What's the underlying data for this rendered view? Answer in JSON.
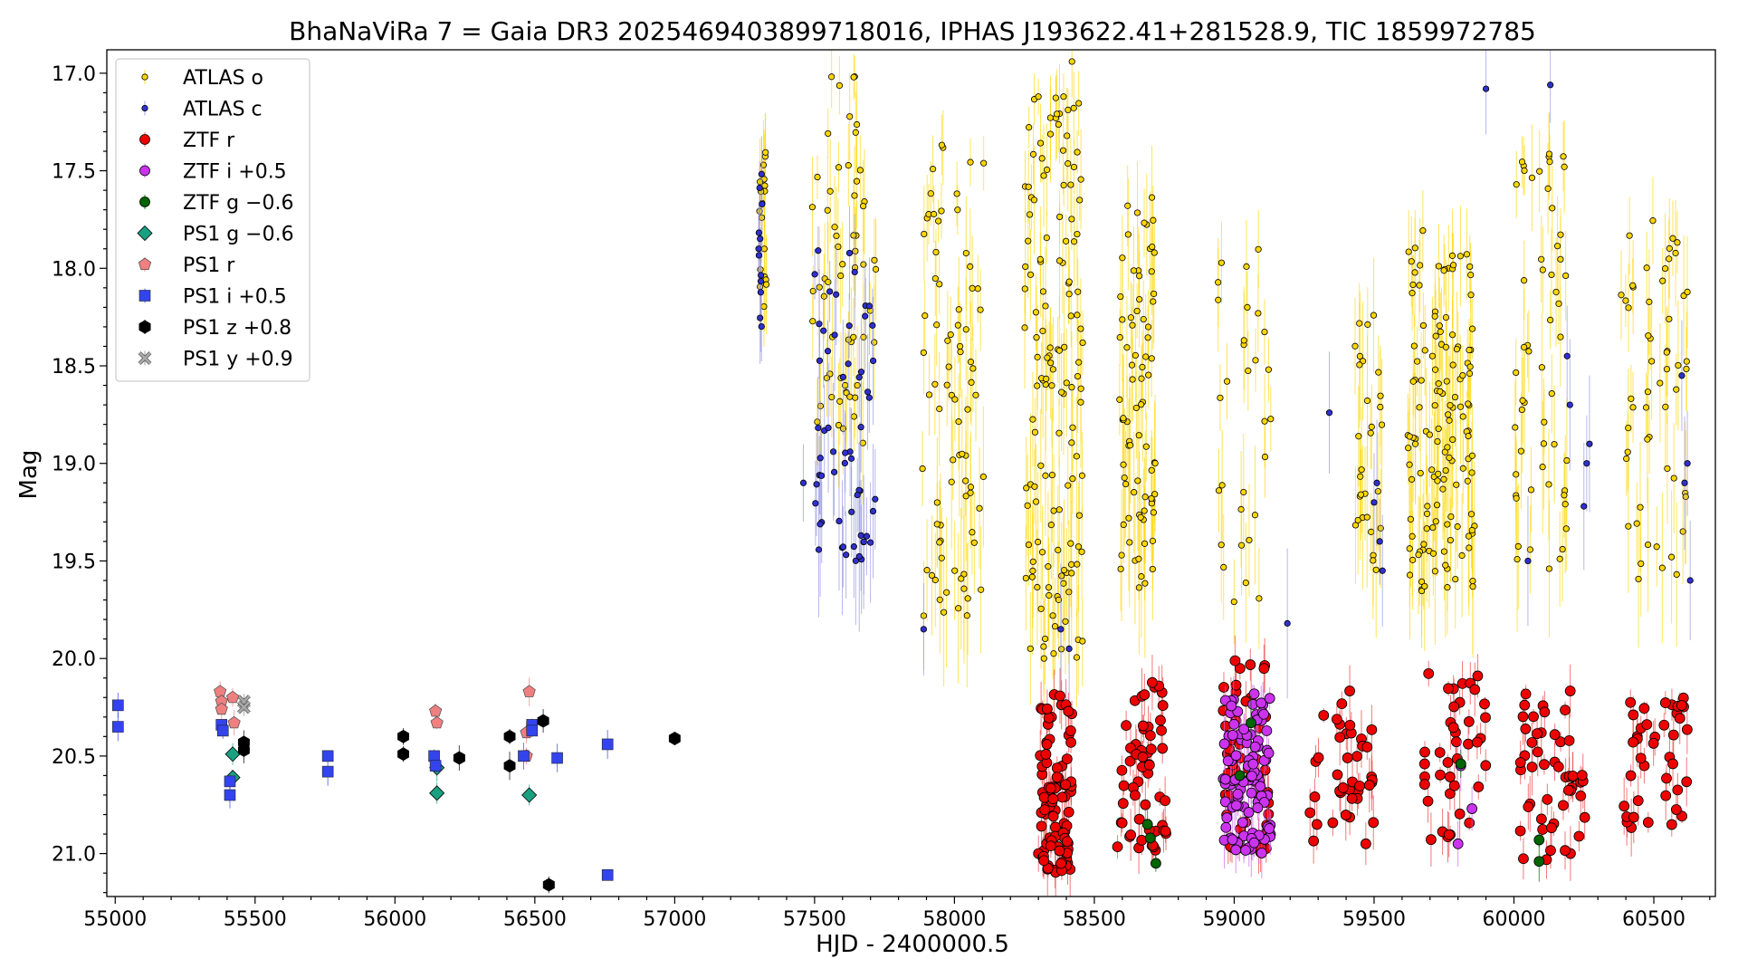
{
  "chart_data": {
    "type": "scatter",
    "title": "BhaNaViRa 7 = Gaia DR3 2025469403899718016, IPHAS J193622.41+281528.9, TIC 1859972785",
    "xlabel": "HJD - 2400000.5",
    "ylabel": "Mag",
    "xlim": [
      54970,
      60720
    ],
    "ylim": [
      21.22,
      16.88
    ],
    "y_inverted": true,
    "x_ticks": [
      55000,
      55500,
      56000,
      56500,
      57000,
      57500,
      58000,
      58500,
      59000,
      59500,
      60000,
      60500
    ],
    "y_ticks": [
      17.0,
      17.5,
      18.0,
      18.5,
      19.0,
      19.5,
      20.0,
      20.5,
      21.0
    ],
    "grid": false,
    "legend_position": "upper-left",
    "series": [
      {
        "name": "ATLAS o",
        "marker": "circle-small",
        "color": "#ffd700",
        "err_color": "#ffd700",
        "seasons": [
          {
            "x0": 57300,
            "x1": 57330,
            "ymin": 17.2,
            "ymax": 18.2,
            "n": 18
          },
          {
            "x0": 57490,
            "x1": 57720,
            "ymin": 17.0,
            "ymax": 18.9,
            "n": 60
          },
          {
            "x0": 57880,
            "x1": 58110,
            "ymin": 17.35,
            "ymax": 19.8,
            "n": 80
          },
          {
            "x0": 58250,
            "x1": 58460,
            "ymin": 17.1,
            "ymax": 20.0,
            "n": 140
          },
          {
            "x0": 58590,
            "x1": 58720,
            "ymin": 17.6,
            "ymax": 19.7,
            "n": 80
          },
          {
            "x0": 58940,
            "x1": 59140,
            "ymin": 17.9,
            "ymax": 19.9,
            "n": 30
          },
          {
            "x0": 59430,
            "x1": 59530,
            "ymin": 18.2,
            "ymax": 19.6,
            "n": 30
          },
          {
            "x0": 59620,
            "x1": 59860,
            "ymin": 17.8,
            "ymax": 19.7,
            "n": 140
          },
          {
            "x0": 60000,
            "x1": 60200,
            "ymin": 17.4,
            "ymax": 19.6,
            "n": 55
          },
          {
            "x0": 60380,
            "x1": 60620,
            "ymin": 17.75,
            "ymax": 19.6,
            "n": 55
          }
        ],
        "points": [
          {
            "x": 57640,
            "y": 17.02
          },
          {
            "x": 58390,
            "y": 17.12
          },
          {
            "x": 58300,
            "y": 17.12
          },
          {
            "x": 58420,
            "y": 16.94
          },
          {
            "x": 58320,
            "y": 20.0
          },
          {
            "x": 60180,
            "y": 17.48
          }
        ]
      },
      {
        "name": "ATLAS c",
        "marker": "circle-small",
        "color": "#3030d0",
        "err_color": "#9090e0",
        "seasons": [
          {
            "x0": 57300,
            "x1": 57320,
            "ymin": 17.5,
            "ymax": 18.3,
            "n": 12
          },
          {
            "x0": 57500,
            "x1": 57720,
            "ymin": 17.9,
            "ymax": 19.5,
            "n": 60
          }
        ],
        "points": [
          {
            "x": 57460,
            "y": 19.1
          },
          {
            "x": 57890,
            "y": 19.85
          },
          {
            "x": 58380,
            "y": 19.85
          },
          {
            "x": 58410,
            "y": 19.95
          },
          {
            "x": 59190,
            "y": 19.82
          },
          {
            "x": 59340,
            "y": 18.74
          },
          {
            "x": 59510,
            "y": 19.1
          },
          {
            "x": 59520,
            "y": 19.4
          },
          {
            "x": 59530,
            "y": 19.55
          },
          {
            "x": 59500,
            "y": 19.2
          },
          {
            "x": 59900,
            "y": 17.08
          },
          {
            "x": 60050,
            "y": 19.5
          },
          {
            "x": 60130,
            "y": 17.06
          },
          {
            "x": 60190,
            "y": 18.45
          },
          {
            "x": 60200,
            "y": 18.7
          },
          {
            "x": 60250,
            "y": 19.22
          },
          {
            "x": 60260,
            "y": 19.0
          },
          {
            "x": 60270,
            "y": 18.9
          },
          {
            "x": 60600,
            "y": 18.55
          },
          {
            "x": 60610,
            "y": 19.1
          },
          {
            "x": 60630,
            "y": 19.6
          },
          {
            "x": 60620,
            "y": 19.0
          }
        ]
      },
      {
        "name": "ZTF r",
        "marker": "circle",
        "color": "#ee0000",
        "err_color": "#ee4040",
        "seasons": [
          {
            "x0": 58300,
            "x1": 58420,
            "ymin": 20.15,
            "ymax": 21.1,
            "n": 90
          },
          {
            "x0": 58580,
            "x1": 58760,
            "ymin": 20.1,
            "ymax": 21.0,
            "n": 55
          },
          {
            "x0": 58960,
            "x1": 59130,
            "ymin": 20.0,
            "ymax": 21.0,
            "n": 55
          },
          {
            "x0": 59260,
            "x1": 59500,
            "ymin": 20.15,
            "ymax": 20.95,
            "n": 40
          },
          {
            "x0": 59680,
            "x1": 59900,
            "ymin": 20.05,
            "ymax": 20.95,
            "n": 40
          },
          {
            "x0": 60020,
            "x1": 60260,
            "ymin": 20.05,
            "ymax": 21.05,
            "n": 50
          },
          {
            "x0": 60390,
            "x1": 60620,
            "ymin": 20.2,
            "ymax": 20.9,
            "n": 40
          }
        ],
        "points": []
      },
      {
        "name": "ZTF i +0.5",
        "marker": "circle",
        "color": "#cc33ee",
        "err_color": "#cc66ee",
        "seasons": [
          {
            "x0": 58960,
            "x1": 59130,
            "ymin": 20.15,
            "ymax": 21.0,
            "n": 100
          }
        ],
        "points": [
          {
            "x": 59800,
            "y": 20.95
          },
          {
            "x": 59850,
            "y": 20.77
          },
          {
            "x": 59810,
            "y": 20.55
          }
        ]
      },
      {
        "name": "ZTF g −0.6",
        "marker": "circle",
        "color": "#006400",
        "err_color": "#006400",
        "seasons": [],
        "points": [
          {
            "x": 58700,
            "y": 20.92
          },
          {
            "x": 58720,
            "y": 21.05
          },
          {
            "x": 58690,
            "y": 20.85
          },
          {
            "x": 59020,
            "y": 20.6
          },
          {
            "x": 59060,
            "y": 20.33
          },
          {
            "x": 59810,
            "y": 20.54
          },
          {
            "x": 60090,
            "y": 20.93
          },
          {
            "x": 60090,
            "y": 21.04
          }
        ]
      },
      {
        "name": "PS1 g −0.6",
        "marker": "diamond",
        "color": "#1aa080",
        "err_color": "#1aa080",
        "seasons": [],
        "points": [
          {
            "x": 55420,
            "y": 20.49
          },
          {
            "x": 55420,
            "y": 20.61
          },
          {
            "x": 56150,
            "y": 20.56
          },
          {
            "x": 56150,
            "y": 20.69
          },
          {
            "x": 56480,
            "y": 20.7
          }
        ]
      },
      {
        "name": "PS1 r",
        "marker": "pentagon",
        "color": "#f08080",
        "err_color": "#f08080",
        "seasons": [],
        "points": [
          {
            "x": 55375,
            "y": 20.17
          },
          {
            "x": 55380,
            "y": 20.22
          },
          {
            "x": 55380,
            "y": 20.26
          },
          {
            "x": 55420,
            "y": 20.2
          },
          {
            "x": 55425,
            "y": 20.33
          },
          {
            "x": 56145,
            "y": 20.27
          },
          {
            "x": 56150,
            "y": 20.33
          },
          {
            "x": 56480,
            "y": 20.17
          },
          {
            "x": 56470,
            "y": 20.38
          },
          {
            "x": 56470,
            "y": 20.5
          }
        ]
      },
      {
        "name": "PS1 i +0.5",
        "marker": "square",
        "color": "#3344ee",
        "err_color": "#3344ee",
        "seasons": [],
        "points": [
          {
            "x": 55010,
            "y": 20.24
          },
          {
            "x": 55010,
            "y": 20.35
          },
          {
            "x": 55380,
            "y": 20.34
          },
          {
            "x": 55385,
            "y": 20.37
          },
          {
            "x": 55410,
            "y": 20.63
          },
          {
            "x": 55410,
            "y": 20.7
          },
          {
            "x": 55760,
            "y": 20.5
          },
          {
            "x": 55760,
            "y": 20.58
          },
          {
            "x": 56140,
            "y": 20.5
          },
          {
            "x": 56145,
            "y": 20.55
          },
          {
            "x": 56460,
            "y": 20.5
          },
          {
            "x": 56490,
            "y": 20.34
          },
          {
            "x": 56490,
            "y": 20.37
          },
          {
            "x": 56580,
            "y": 20.51
          },
          {
            "x": 56760,
            "y": 20.44
          },
          {
            "x": 56760,
            "y": 21.11
          }
        ]
      },
      {
        "name": "PS1 z +0.8",
        "marker": "hexagon",
        "color": "#000000",
        "err_color": "#000000",
        "seasons": [],
        "points": [
          {
            "x": 55460,
            "y": 20.43
          },
          {
            "x": 55460,
            "y": 20.47
          },
          {
            "x": 56030,
            "y": 20.4
          },
          {
            "x": 56030,
            "y": 20.49
          },
          {
            "x": 56230,
            "y": 20.51
          },
          {
            "x": 56410,
            "y": 20.4
          },
          {
            "x": 56410,
            "y": 20.55
          },
          {
            "x": 56530,
            "y": 20.32
          },
          {
            "x": 56550,
            "y": 21.16
          },
          {
            "x": 57000,
            "y": 20.41
          }
        ]
      },
      {
        "name": "PS1 y +0.9",
        "marker": "x-filled",
        "color": "#aaaaaa",
        "err_color": "#888888",
        "seasons": [],
        "points": [
          {
            "x": 55460,
            "y": 20.22
          },
          {
            "x": 55460,
            "y": 20.25
          }
        ]
      }
    ]
  }
}
